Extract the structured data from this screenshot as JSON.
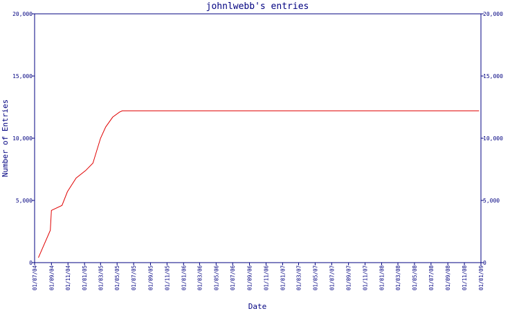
{
  "chart_data": {
    "type": "line",
    "title": "johnlwebb's entries",
    "xlabel": "Date",
    "ylabel": "Number of Entries",
    "ylim": [
      0,
      20000
    ],
    "y_ticks": [
      0,
      5000,
      10000,
      15000,
      20000
    ],
    "y_tick_labels": [
      "0",
      "5,000",
      "10,000",
      "15,000",
      "20,000"
    ],
    "y_axis_right": true,
    "grid": false,
    "line_color": "#e00000",
    "axis_color": "#000080",
    "x_tick_labels": [
      "01/07/04",
      "01/09/04",
      "01/11/04",
      "01/01/05",
      "01/03/05",
      "01/05/05",
      "01/07/05",
      "01/09/05",
      "01/11/05",
      "01/01/06",
      "01/03/06",
      "01/05/06",
      "01/07/06",
      "01/09/06",
      "01/11/06",
      "01/01/07",
      "01/03/07",
      "01/05/07",
      "01/07/07",
      "01/09/07",
      "01/11/07",
      "01/01/08",
      "01/03/08",
      "01/05/08",
      "01/07/08",
      "01/09/08",
      "01/11/08",
      "01/01/09"
    ],
    "x": [
      "2004-07-15",
      "2004-08-28",
      "2004-09-01",
      "2004-10-10",
      "2004-10-30",
      "2004-12-01",
      "2005-01-05",
      "2005-02-01",
      "2005-03-01",
      "2005-03-20",
      "2005-04-15",
      "2005-05-10",
      "2005-05-20",
      "2008-12-25"
    ],
    "y": [
      400,
      2600,
      4200,
      4600,
      5700,
      6800,
      7400,
      8000,
      10000,
      10900,
      11700,
      12100,
      12200,
      12200
    ]
  }
}
